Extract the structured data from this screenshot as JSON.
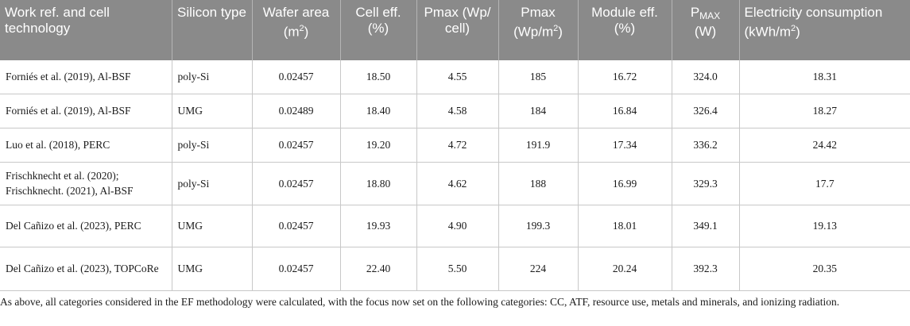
{
  "table": {
    "headers": [
      {
        "text": "Work ref. and cell technology"
      },
      {
        "text": "Silicon type"
      },
      {
        "pre": "Wafer area (m",
        "sup": "2",
        "post": ")"
      },
      {
        "text": "Cell eff. (%)"
      },
      {
        "text": "Pmax (Wp/ cell)"
      },
      {
        "pre": "Pmax (Wp/m",
        "sup": "2",
        "post": ")"
      },
      {
        "text": "Module eff. (%)"
      },
      {
        "pre": "P",
        "sub": "MAX",
        "post": " (W)"
      },
      {
        "pre": "Electricity consumption (kWh/m",
        "sup": "2",
        "post": ")"
      }
    ],
    "rows": [
      [
        "Forniés et al. (2019), Al-BSF",
        "poly-Si",
        "0.02457",
        "18.50",
        "4.55",
        "185",
        "16.72",
        "324.0",
        "18.31"
      ],
      [
        "Forniés et al. (2019), Al-BSF",
        "UMG",
        "0.02489",
        "18.40",
        "4.58",
        "184",
        "16.84",
        "326.4",
        "18.27"
      ],
      [
        "Luo et al. (2018), PERC",
        "poly-Si",
        "0.02457",
        "19.20",
        "4.72",
        "191.9",
        "17.34",
        "336.2",
        "24.42"
      ],
      [
        "Frischknecht et al. (2020); Frischknecht. (2021), Al-BSF",
        "poly-Si",
        "0.02457",
        "18.80",
        "4.62",
        "188",
        "16.99",
        "329.3",
        "17.7"
      ],
      [
        "Del Cañizo et al. (2023), PERC",
        "UMG",
        "0.02457",
        "19.93",
        "4.90",
        "199.3",
        "18.01",
        "349.1",
        "19.13"
      ],
      [
        "Del Cañizo et al. (2023), TOPCoRe",
        "UMG",
        "0.02457",
        "22.40",
        "5.50",
        "224",
        "20.24",
        "392.3",
        "20.35"
      ]
    ]
  },
  "footnote": "As above, all categories considered in the EF methodology were calculated, with the focus now set on the following categories: CC, ATF, resource use, metals and minerals, and ionizing radiation.",
  "colors": {
    "header_bg": "#8a8a8a",
    "header_text": "#ffffff",
    "border": "#c8c8c8"
  }
}
